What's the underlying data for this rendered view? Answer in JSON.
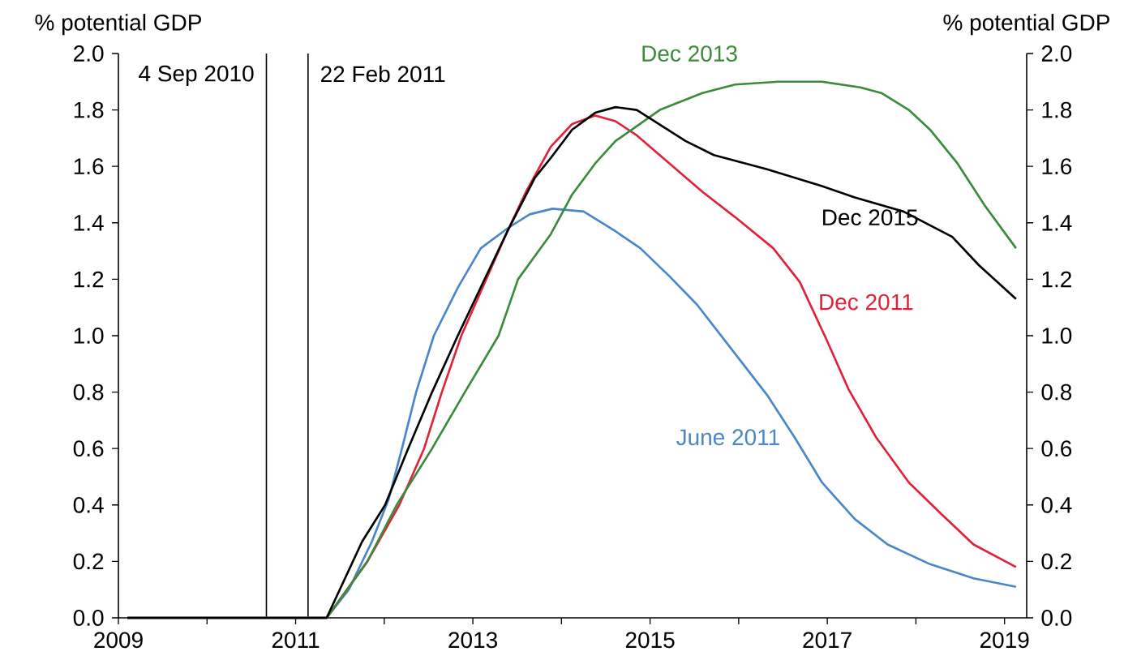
{
  "chart_data": {
    "type": "line",
    "ylabel": "% potential GDP",
    "y2label": "% potential GDP",
    "xlim": [
      2009,
      2019.25
    ],
    "xticks": [
      2009,
      {
        "value": 2010,
        "label": null
      },
      2011,
      {
        "value": 2012,
        "label": null
      },
      2013,
      {
        "value": 2014,
        "label": null
      },
      2015,
      {
        "value": 2016,
        "label": null
      },
      2017,
      {
        "value": 2018,
        "label": null
      },
      2019
    ],
    "ylim": [
      0,
      2
    ],
    "yticks": [
      {
        "value": 0,
        "label": "0.0"
      },
      0.2,
      0.4,
      0.6,
      0.8,
      {
        "value": 1,
        "label": "1.0"
      },
      1.2,
      1.4,
      1.6,
      1.8,
      {
        "value": 2,
        "label": "2.0"
      }
    ],
    "y2lim": [
      0,
      2
    ],
    "y2ticks": [
      {
        "value": 0,
        "label": "0.0"
      },
      0.2,
      0.4,
      0.6,
      0.8,
      {
        "value": 1,
        "label": "1.0"
      },
      1.2,
      1.4,
      1.6,
      1.8,
      {
        "value": 2,
        "label": "2.0"
      }
    ],
    "marker": "none",
    "line_style": "solid",
    "grid": false,
    "ref_lines": [
      {
        "axis": "x",
        "value": 2010.67,
        "label": "4 Sep 2010",
        "color": "#000000"
      },
      {
        "axis": "x",
        "value": 2011.14,
        "label": "22 Feb 2011",
        "color": "#000000"
      }
    ],
    "series": [
      {
        "name": "June 2011",
        "color": "#4a86c8",
        "x": [
          2009.1,
          2011.35,
          2011.6,
          2011.86,
          2012.05,
          2012.2,
          2012.36,
          2012.56,
          2012.83,
          2013.09,
          2013.39,
          2013.64,
          2013.9,
          2014.25,
          2014.61,
          2014.89,
          2015.22,
          2015.53,
          2015.9,
          2016.32,
          2016.63,
          2016.94,
          2017.31,
          2017.68,
          2018.16,
          2018.65,
          2019.13
        ],
        "values": [
          0,
          0,
          0.1,
          0.27,
          0.42,
          0.6,
          0.8,
          1.0,
          1.17,
          1.31,
          1.38,
          1.43,
          1.45,
          1.44,
          1.37,
          1.31,
          1.21,
          1.11,
          0.96,
          0.79,
          0.64,
          0.48,
          0.35,
          0.26,
          0.19,
          0.14,
          0.11
        ]
      },
      {
        "name": "Dec 2011",
        "color": "#e0233a",
        "x": [
          2009.1,
          2011.35,
          2011.81,
          2012.17,
          2012.45,
          2012.65,
          2012.87,
          2013.39,
          2013.6,
          2013.88,
          2014.12,
          2014.38,
          2014.61,
          2014.85,
          2015.22,
          2015.59,
          2015.96,
          2016.39,
          2016.69,
          2017.0,
          2017.24,
          2017.55,
          2017.92,
          2018.28,
          2018.65,
          2019.13
        ],
        "values": [
          0,
          0,
          0.2,
          0.4,
          0.6,
          0.8,
          1.0,
          1.37,
          1.51,
          1.67,
          1.75,
          1.78,
          1.76,
          1.71,
          1.61,
          1.51,
          1.42,
          1.31,
          1.19,
          0.98,
          0.81,
          0.64,
          0.48,
          0.37,
          0.26,
          0.18
        ]
      },
      {
        "name": "Dec 2013",
        "color": "#3c8a3c",
        "x": [
          2009.1,
          2011.35,
          2011.81,
          2012.14,
          2012.54,
          2012.91,
          2013.29,
          2013.51,
          2013.88,
          2014.12,
          2014.38,
          2014.61,
          2015.11,
          2015.59,
          2015.96,
          2016.45,
          2016.94,
          2017.37,
          2017.61,
          2017.92,
          2018.16,
          2018.47,
          2018.78,
          2019.13
        ],
        "values": [
          0,
          0,
          0.2,
          0.4,
          0.6,
          0.8,
          1.0,
          1.2,
          1.36,
          1.5,
          1.61,
          1.69,
          1.8,
          1.86,
          1.89,
          1.9,
          1.9,
          1.88,
          1.86,
          1.8,
          1.73,
          1.61,
          1.46,
          1.31
        ]
      },
      {
        "name": "Dec 2015",
        "color": "#000000",
        "x": [
          2009.1,
          2011.35,
          2011.75,
          2012.01,
          2012.27,
          2012.54,
          2012.83,
          2013.39,
          2013.7,
          2013.88,
          2014.12,
          2014.38,
          2014.61,
          2014.85,
          2015.4,
          2015.72,
          2016.32,
          2016.94,
          2017.31,
          2017.86,
          2018.41,
          2018.71,
          2019.13
        ],
        "values": [
          0,
          0,
          0.27,
          0.4,
          0.6,
          0.8,
          1.0,
          1.37,
          1.56,
          1.63,
          1.73,
          1.79,
          1.81,
          1.8,
          1.69,
          1.64,
          1.59,
          1.53,
          1.49,
          1.44,
          1.35,
          1.25,
          1.13
        ]
      }
    ]
  }
}
